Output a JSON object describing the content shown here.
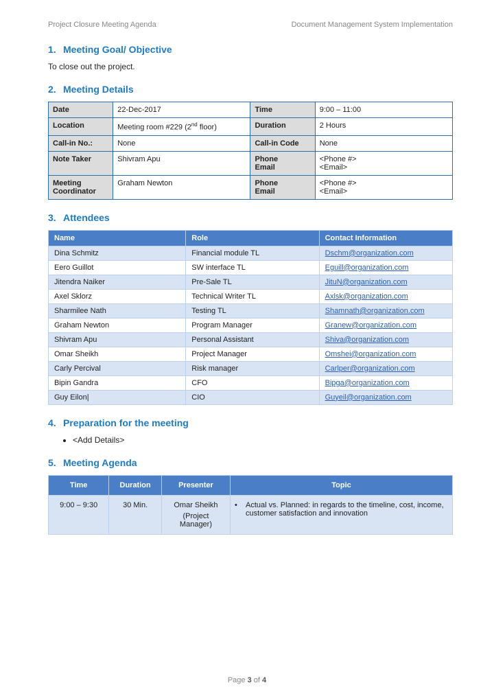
{
  "header": {
    "left": "Project Closure Meeting Agenda",
    "right": "Document Management System Implementation"
  },
  "sections": {
    "goal": {
      "num": "1.",
      "title": "Meeting Goal/ Objective",
      "body": "To close out the project."
    },
    "details": {
      "num": "2.",
      "title": "Meeting Details"
    },
    "attendees": {
      "num": "3.",
      "title": "Attendees"
    },
    "prep": {
      "num": "4.",
      "title": "Preparation for the meeting",
      "bullet": "<Add Details>"
    },
    "agenda": {
      "num": "5.",
      "title": "Meeting Agenda"
    }
  },
  "details_table": {
    "rows": [
      {
        "l1": "Date",
        "v1": "22-Dec-2017",
        "l2": "Time",
        "v2": "9:00 – 11:00"
      },
      {
        "l1": "Location",
        "v1_html": "Meeting room #229 (2<span class=\"sup\">nd</span> floor)",
        "l2": "Duration",
        "v2": "2 Hours"
      },
      {
        "l1": "Call-in No.:",
        "v1": "None",
        "l2": "Call-in Code",
        "v2": "None"
      },
      {
        "l1": "Note Taker",
        "v1": "Shivram Apu",
        "l2": "Phone\nEmail",
        "v2": "<Phone #>\n<Email>"
      },
      {
        "l1": "Meeting\nCoordinator",
        "v1": "Graham Newton",
        "l2": "Phone\nEmail",
        "v2": "<Phone #>\n<Email>"
      }
    ]
  },
  "attendees_table": {
    "headers": [
      "Name",
      "Role",
      "Contact Information"
    ],
    "rows": [
      {
        "name": "Dina Schmitz",
        "role": "Financial module TL",
        "email": "Dschm@organization.com"
      },
      {
        "name": "Eero Guillot",
        "role": "SW interface TL",
        "email": "Eguill@organization.com"
      },
      {
        "name": "Jitendra Naiker",
        "role": "Pre-Sale TL",
        "email": "JituN@organization.com"
      },
      {
        "name": "Axel Sklorz",
        "role": "Technical Writer TL",
        "email": "Axlsk@organization.com"
      },
      {
        "name": "Sharmilee Nath",
        "role": "Testing TL",
        "email": "Shamnath@organization.com"
      },
      {
        "name": "Graham Newton",
        "role": "Program Manager",
        "email": "Granew@organization.com"
      },
      {
        "name": "Shivram Apu",
        "role": "Personal Assistant",
        "email": "Shiva@organization.com"
      },
      {
        "name": "Omar Sheikh",
        "role": "Project Manager",
        "email": "Omshei@organization.com"
      },
      {
        "name": "Carly Percival",
        "role": "Risk manager",
        "email": "Carlper@organization.com"
      },
      {
        "name": "Bipin Gandra",
        "role": "CFO",
        "email": "Bipga@organization.com"
      },
      {
        "name": "Guy Eilon",
        "role": "CIO",
        "email": "Guyeil@organization.com"
      }
    ]
  },
  "agenda_table": {
    "headers": [
      "Time",
      "Duration",
      "Presenter",
      "Topic"
    ],
    "row": {
      "time": "9:00 – 9:30",
      "duration": "30 Min.",
      "presenter": "Omar Sheikh",
      "presenter_sub": "(Project Manager)",
      "topic": "Actual vs. Planned: in regards to the timeline, cost, income, customer satisfaction and innovation"
    }
  },
  "footer": {
    "prefix": "Page ",
    "current": "3",
    "of": " of ",
    "total": "4"
  },
  "styling": {
    "heading_color": "#1e7bc4",
    "details_border": "#2a6fa8",
    "details_label_bg": "#dcdcdc",
    "table_header_bg": "#4a7fc8",
    "table_border": "#bcd0e8",
    "row_alt_bg": "#d8e4f3",
    "link_color": "#2a5db0",
    "muted_text": "#888888"
  }
}
